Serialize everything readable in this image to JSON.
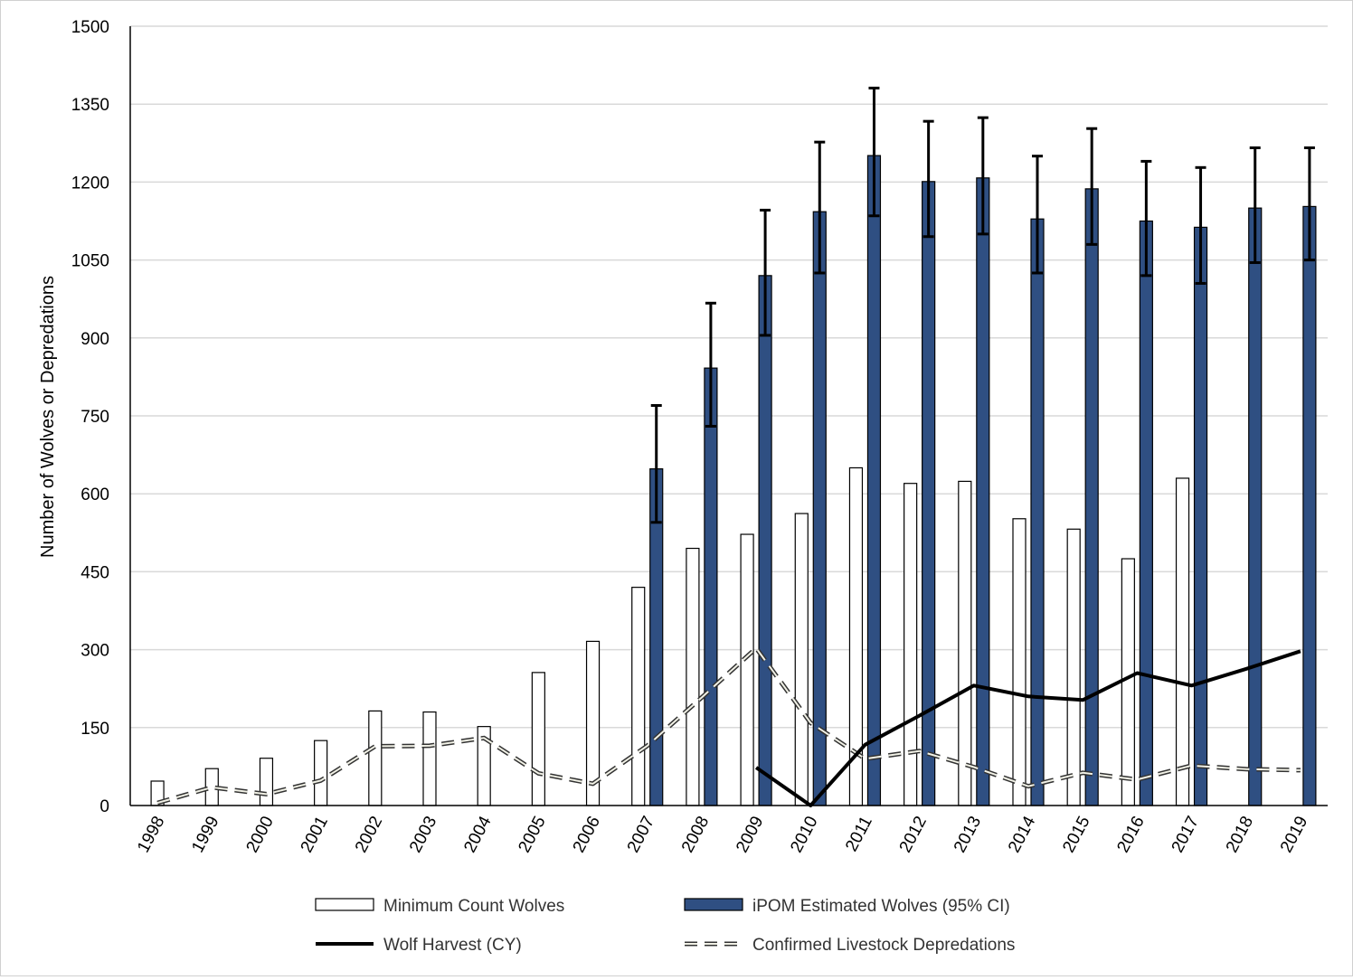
{
  "chart_data": {
    "type": "bar",
    "ylabel": "Number  of Wolves or Depredations",
    "xlabel": "",
    "ylim": [
      0,
      1500
    ],
    "yticks": [
      0,
      150,
      300,
      450,
      600,
      750,
      900,
      1050,
      1200,
      1350,
      1500
    ],
    "grid": "horizontal",
    "legend_position": "bottom",
    "categories": [
      "1998",
      "1999",
      "2000",
      "2001",
      "2002",
      "2003",
      "2004",
      "2005",
      "2006",
      "2007",
      "2008",
      "2009",
      "2010",
      "2011",
      "2012",
      "2013",
      "2014",
      "2015",
      "2016",
      "2017",
      "2018",
      "2019"
    ],
    "series": [
      {
        "name": "Minimum Count Wolves",
        "kind": "bar",
        "color": "#ffffff",
        "values": [
          47,
          71,
          91,
          125,
          182,
          180,
          152,
          256,
          316,
          420,
          495,
          522,
          562,
          650,
          620,
          624,
          552,
          532,
          475,
          630,
          null,
          null
        ]
      },
      {
        "name": "iPOM Estimated Wolves (95% CI)",
        "kind": "bar",
        "color": "#2f4f82",
        "values": [
          null,
          null,
          null,
          null,
          null,
          null,
          null,
          null,
          null,
          648,
          842,
          1020,
          1143,
          1251,
          1201,
          1208,
          1129,
          1187,
          1125,
          1113,
          1150,
          1153
        ],
        "ci_low": [
          null,
          null,
          null,
          null,
          null,
          null,
          null,
          null,
          null,
          545,
          730,
          905,
          1025,
          1135,
          1095,
          1100,
          1025,
          1080,
          1020,
          1005,
          1045,
          1050
        ],
        "ci_high": [
          null,
          null,
          null,
          null,
          null,
          null,
          null,
          null,
          null,
          770,
          967,
          1146,
          1277,
          1381,
          1317,
          1324,
          1250,
          1303,
          1240,
          1228,
          1266,
          1266
        ]
      },
      {
        "name": "Wolf Harvest (CY)",
        "kind": "line",
        "color": "#000000",
        "values": [
          null,
          null,
          null,
          null,
          null,
          null,
          null,
          null,
          null,
          null,
          null,
          73,
          0,
          117,
          173,
          231,
          210,
          203,
          255,
          231,
          263,
          297
        ]
      },
      {
        "name": "Confirmed Livestock Depredations",
        "kind": "dashed-line",
        "color": "#8c8c7a",
        "values": [
          5,
          35,
          22,
          48,
          114,
          115,
          130,
          62,
          42,
          115,
          208,
          303,
          159,
          90,
          105,
          74,
          37,
          63,
          50,
          77,
          70,
          68
        ]
      }
    ]
  }
}
